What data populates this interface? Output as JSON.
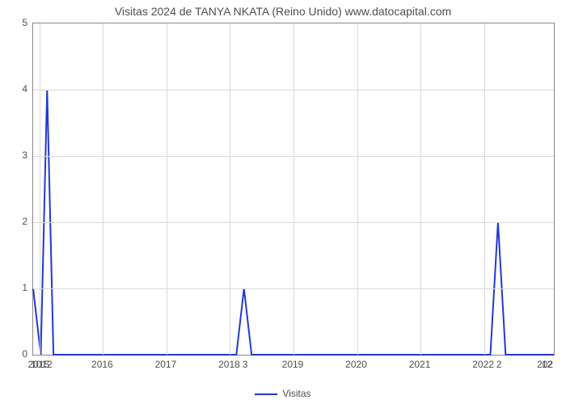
{
  "chart": {
    "type": "line",
    "title": "Visitas 2024 de TANYA NKATA (Reino Unido) www.datocapital.com",
    "title_fontsize": 14,
    "title_color": "#505050",
    "background_color": "#ffffff",
    "plot_border_color": "#888888",
    "grid_color": "#d9d9d9",
    "grid_on": true,
    "line_color": "#2239d0",
    "line_width": 2,
    "x": {
      "min": 2014.9,
      "max": 2023.1,
      "ticks": [
        2015,
        2016,
        2017,
        2018,
        2019,
        2020,
        2021,
        2022
      ],
      "tick_labels": [
        "2015",
        "2016",
        "2017",
        "2018",
        "2019",
        "2020",
        "2021",
        "2022"
      ],
      "edge_left_label": "1012",
      "cluster_label_2018": "3",
      "cluster_label_2022": "2",
      "edge_right_label": "12",
      "partial_right_label": "202",
      "tick_fontsize": 12,
      "tick_color": "#505050"
    },
    "y": {
      "min": 0,
      "max": 5,
      "ticks": [
        0,
        1,
        2,
        3,
        4,
        5
      ],
      "tick_step": 1,
      "tick_fontsize": 12,
      "tick_color": "#505050",
      "label": ""
    },
    "series": [
      {
        "name": "Visitas",
        "color": "#2239d0",
        "points": [
          [
            2014.9,
            1.0
          ],
          [
            2015.02,
            0.0
          ],
          [
            2015.12,
            4.0
          ],
          [
            2015.22,
            0.0
          ],
          [
            2018.1,
            0.0
          ],
          [
            2018.22,
            1.0
          ],
          [
            2018.34,
            0.0
          ],
          [
            2022.1,
            0.0
          ],
          [
            2022.22,
            2.0
          ],
          [
            2022.34,
            0.0
          ],
          [
            2023.1,
            0.0
          ]
        ]
      }
    ],
    "legend": {
      "label": "Visitas",
      "position": "bottom-center",
      "swatch_color": "#2239d0",
      "fontsize": 12
    }
  }
}
